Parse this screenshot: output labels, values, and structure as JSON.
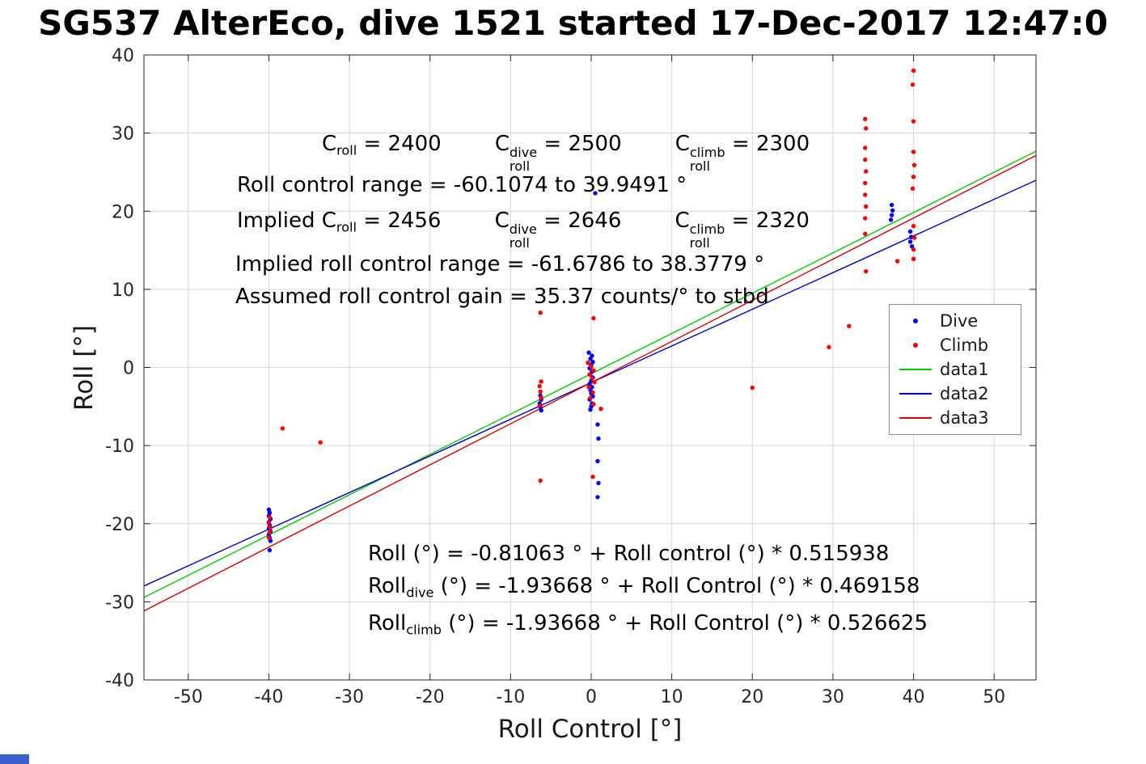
{
  "title": "SG537 AlterEco, dive 1521 started 17-Dec-2017 12:47:0",
  "misc": {
    "corner_fragment_color": "#3a5fcd"
  },
  "chart_data": {
    "type": "scatter",
    "title": "SG537 AlterEco, dive 1521 started 17-Dec-2017 12:47:0",
    "xlabel": "Roll Control [°]",
    "ylabel": "Roll [°]",
    "xlim": [
      -55.5,
      55.2
    ],
    "ylim": [
      -40,
      40
    ],
    "x_ticks": [
      -50,
      -40,
      -30,
      -20,
      -10,
      0,
      10,
      20,
      30,
      40,
      50
    ],
    "y_ticks": [
      -40,
      -30,
      -20,
      -10,
      0,
      10,
      20,
      30,
      40
    ],
    "grid": true,
    "legend_position": "right-middle",
    "colors": {
      "dive": "#0000ff",
      "climb": "#ff0000",
      "data1": "#00cc00",
      "data2": "#0000cc",
      "data3": "#dd0000",
      "grid": "#d6d6d6",
      "axis": "#262626"
    },
    "series": [
      {
        "name": "Dive",
        "type": "scatter",
        "color": "#0000ff",
        "points": [
          [
            -40,
            -18.2
          ],
          [
            -39.9,
            -18.6
          ],
          [
            -40,
            -19
          ],
          [
            -39.8,
            -19.4
          ],
          [
            -40,
            -19.8
          ],
          [
            -39.9,
            -20.2
          ],
          [
            -40,
            -20.6
          ],
          [
            -39.8,
            -21
          ],
          [
            -40,
            -21.4
          ],
          [
            -39.9,
            -21.8
          ],
          [
            -39.8,
            -22.2
          ],
          [
            -39.9,
            -23.4
          ],
          [
            -6.3,
            -3.6
          ],
          [
            -6.2,
            -4.1
          ],
          [
            -6.4,
            -4.6
          ],
          [
            -6.3,
            -5.1
          ],
          [
            -6.2,
            -5.5
          ],
          [
            0.5,
            22.3
          ],
          [
            -0.3,
            1.9
          ],
          [
            0.1,
            1.5
          ],
          [
            -0.1,
            1.1
          ],
          [
            0.2,
            0.7
          ],
          [
            0,
            0.3
          ],
          [
            -0.2,
            -0.1
          ],
          [
            0.1,
            -0.5
          ],
          [
            -0.1,
            -0.9
          ],
          [
            0.2,
            -1.3
          ],
          [
            0,
            -1.7
          ],
          [
            -0.2,
            -2.1
          ],
          [
            0.1,
            -2.5
          ],
          [
            -0.1,
            -2.9
          ],
          [
            0,
            -3.3
          ],
          [
            0.2,
            -3.7
          ],
          [
            -0.2,
            -4.1
          ],
          [
            0.1,
            -4.6
          ],
          [
            0,
            -5
          ],
          [
            -0.1,
            -5.4
          ],
          [
            0.8,
            -7.3
          ],
          [
            0.9,
            -9.1
          ],
          [
            0.8,
            -12
          ],
          [
            0.9,
            -14.8
          ],
          [
            0.8,
            -16.6
          ],
          [
            37.3,
            20.8
          ],
          [
            37.4,
            20.1
          ],
          [
            37.3,
            19.5
          ],
          [
            37.2,
            18.9
          ],
          [
            39.6,
            17.4
          ],
          [
            39.7,
            16.7
          ],
          [
            39.6,
            16.1
          ],
          [
            39.8,
            15.5
          ]
        ]
      },
      {
        "name": "Climb",
        "type": "scatter",
        "color": "#ff0000",
        "points": [
          [
            -39.9,
            -19.2
          ],
          [
            -40,
            -19.9
          ],
          [
            -39.8,
            -20.5
          ],
          [
            -39.9,
            -21.1
          ],
          [
            -40,
            -21.8
          ],
          [
            -38.3,
            -7.8
          ],
          [
            -33.6,
            -9.6
          ],
          [
            -6.3,
            7
          ],
          [
            -6.2,
            -1.8
          ],
          [
            -6.4,
            -2.4
          ],
          [
            -6.3,
            -3.1
          ],
          [
            -6.2,
            -3.9
          ],
          [
            -6.4,
            -4.9
          ],
          [
            -6.3,
            -14.5
          ],
          [
            0.3,
            6.3
          ],
          [
            -0.4,
            0.6
          ],
          [
            0,
            0.1
          ],
          [
            0.3,
            -0.4
          ],
          [
            -0.2,
            -0.9
          ],
          [
            0.1,
            -1.4
          ],
          [
            0.4,
            -1.9
          ],
          [
            -0.3,
            -2.5
          ],
          [
            0.2,
            -3.2
          ],
          [
            -0.1,
            -3.9
          ],
          [
            0.3,
            -4.7
          ],
          [
            1.2,
            -5.3
          ],
          [
            0.2,
            -14
          ],
          [
            20,
            -2.6
          ],
          [
            29.5,
            2.6
          ],
          [
            32,
            5.3
          ],
          [
            34,
            31.8
          ],
          [
            34.1,
            30.6
          ],
          [
            34,
            28.1
          ],
          [
            34,
            26.6
          ],
          [
            34.1,
            25.1
          ],
          [
            34,
            23.6
          ],
          [
            34,
            22.1
          ],
          [
            34.1,
            20.6
          ],
          [
            34,
            19.1
          ],
          [
            34,
            17.1
          ],
          [
            34.1,
            12.3
          ],
          [
            40,
            38
          ],
          [
            39.9,
            36.2
          ],
          [
            40,
            31.5
          ],
          [
            40,
            27.6
          ],
          [
            40.1,
            25.9
          ],
          [
            40,
            24.4
          ],
          [
            39.9,
            22.9
          ],
          [
            40,
            18.1
          ],
          [
            40.1,
            16.6
          ],
          [
            40,
            15.1
          ],
          [
            40,
            13.9
          ],
          [
            38,
            13.6
          ]
        ]
      },
      {
        "name": "data1",
        "type": "line",
        "color": "#00cc00",
        "intercept": -0.81063,
        "slope": 0.515938
      },
      {
        "name": "data2",
        "type": "line",
        "color": "#0000cc",
        "intercept": -1.93668,
        "slope": 0.469158
      },
      {
        "name": "data3",
        "type": "line",
        "color": "#dd0000",
        "intercept": -1.93668,
        "slope": 0.526625
      }
    ]
  },
  "annotations": {
    "coeffs": [
      {
        "t": "C"
      },
      {
        "s": "sub",
        "t": "roll"
      },
      {
        "t": " = 2400        "
      },
      {
        "t": "C"
      },
      {
        "ss": [
          "dive",
          "roll"
        ]
      },
      {
        "t": " = 2500        "
      },
      {
        "t": "C"
      },
      {
        "ss": [
          "climb",
          "roll"
        ]
      },
      {
        "t": " = 2300"
      }
    ],
    "range": [
      {
        "t": "Roll control range = -60.1074 to 39.9491 °"
      }
    ],
    "implied_coeffs": [
      {
        "t": "Implied C"
      },
      {
        "s": "sub",
        "t": "roll"
      },
      {
        "t": " = 2456        "
      },
      {
        "t": "C"
      },
      {
        "ss": [
          "dive",
          "roll"
        ]
      },
      {
        "t": " = 2646        "
      },
      {
        "t": "C"
      },
      {
        "ss": [
          "climb",
          "roll"
        ]
      },
      {
        "t": " = 2320"
      }
    ],
    "implied_range": [
      {
        "t": "Implied roll control range = -61.6786 to 38.3779 °"
      }
    ],
    "gain": [
      {
        "t": "Assumed roll control gain = 35.37 counts/° to stbd"
      }
    ],
    "fit_all": [
      {
        "t": "Roll (°) = -0.81063 ° + Roll control (°) * 0.515938"
      }
    ],
    "fit_dive": [
      {
        "t": "Roll"
      },
      {
        "s": "sub",
        "t": "dive"
      },
      {
        "t": " (°) = -1.93668 ° + Roll Control (°) * 0.469158"
      }
    ],
    "fit_climb": [
      {
        "t": "Roll"
      },
      {
        "s": "sub",
        "t": "climb"
      },
      {
        "t": " (°) = -1.93668 ° + Roll Control (°) * 0.526625"
      }
    ]
  },
  "legend": {
    "entries": [
      "Dive",
      "Climb",
      "data1",
      "data2",
      "data3"
    ]
  }
}
